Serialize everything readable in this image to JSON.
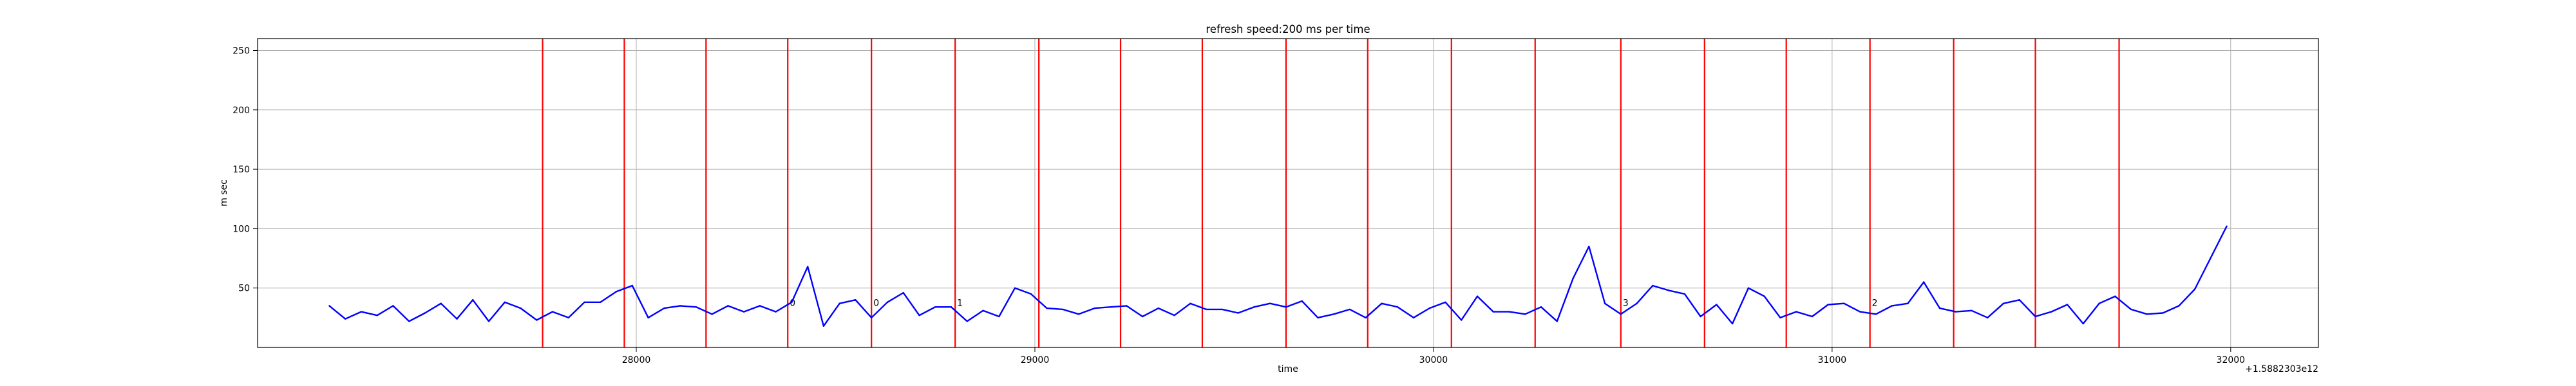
{
  "chart_data": {
    "type": "line",
    "title": "refresh speed:200 ms per time",
    "xlabel": "time",
    "ylabel": "m sec",
    "x_offset_label": "+1.5882303e12",
    "xlim": [
      27050,
      32220
    ],
    "ylim": [
      0,
      260
    ],
    "x_ticks": [
      28000,
      29000,
      30000,
      31000,
      32000
    ],
    "y_ticks": [
      50,
      100,
      150,
      200,
      250
    ],
    "grid": true,
    "line_color": "#0000ff",
    "marker_color": "#ff0000",
    "series": [
      {
        "x": [
          27230,
          27270,
          27310,
          27350,
          27390,
          27430,
          27470,
          27510,
          27550,
          27590,
          27630,
          27670,
          27710,
          27750,
          27790,
          27830,
          27870,
          27910,
          27950,
          27990,
          28030,
          28070,
          28110,
          28150,
          28190,
          28230,
          28270,
          28310,
          28350,
          28390,
          28430,
          28470,
          28510,
          28550,
          28590,
          28630,
          28670,
          28710,
          28750,
          28790,
          28830,
          28870,
          28910,
          28950,
          28990,
          29030,
          29070,
          29110,
          29150,
          29190,
          29230,
          29270,
          29310,
          29350,
          29390,
          29430,
          29470,
          29510,
          29550,
          29590,
          29630,
          29670,
          29710,
          29750,
          29790,
          29830,
          29870,
          29910,
          29950,
          29990,
          30030,
          30070,
          30110,
          30150,
          30190,
          30230,
          30270,
          30310,
          30350,
          30390,
          30430,
          30470,
          30510,
          30550,
          30590,
          30630,
          30670,
          30710,
          30750,
          30790,
          30830,
          30870,
          30910,
          30950,
          30990,
          31030,
          31070,
          31110,
          31150,
          31190,
          31230,
          31270,
          31310,
          31350,
          31390,
          31430,
          31470,
          31510,
          31550,
          31590,
          31630,
          31670,
          31710,
          31750,
          31790,
          31830,
          31870,
          31910,
          31990
        ],
        "y": [
          35,
          24,
          30,
          27,
          35,
          22,
          29,
          37,
          24,
          40,
          22,
          38,
          33,
          23,
          30,
          25,
          38,
          38,
          47,
          52,
          25,
          33,
          35,
          34,
          28,
          35,
          30,
          35,
          30,
          38,
          68,
          18,
          37,
          40,
          25,
          38,
          46,
          27,
          34,
          34,
          22,
          31,
          26,
          50,
          45,
          33,
          32,
          28,
          33,
          34,
          35,
          26,
          33,
          27,
          37,
          32,
          32,
          29,
          34,
          37,
          34,
          39,
          25,
          28,
          32,
          25,
          37,
          34,
          25,
          33,
          38,
          23,
          43,
          30,
          30,
          28,
          34,
          22,
          58,
          85,
          37,
          28,
          37,
          52,
          48,
          45,
          26,
          36,
          20,
          50,
          43,
          25,
          30,
          26,
          36,
          37,
          30,
          28,
          35,
          37,
          55,
          33,
          30,
          31,
          25,
          37,
          40,
          26,
          30,
          36,
          20,
          37,
          43,
          32,
          28,
          29,
          35,
          49,
          102
        ]
      }
    ],
    "vertical_markers": [
      {
        "x": 27765,
        "label": ""
      },
      {
        "x": 27970,
        "label": ""
      },
      {
        "x": 28175,
        "label": ""
      },
      {
        "x": 28380,
        "label": "0"
      },
      {
        "x": 28590,
        "label": "0"
      },
      {
        "x": 28800,
        "label": "1"
      },
      {
        "x": 29010,
        "label": ""
      },
      {
        "x": 29215,
        "label": ""
      },
      {
        "x": 29420,
        "label": ""
      },
      {
        "x": 29630,
        "label": ""
      },
      {
        "x": 29835,
        "label": ""
      },
      {
        "x": 30045,
        "label": ""
      },
      {
        "x": 30255,
        "label": ""
      },
      {
        "x": 30470,
        "label": "3"
      },
      {
        "x": 30680,
        "label": ""
      },
      {
        "x": 30885,
        "label": ""
      },
      {
        "x": 31095,
        "label": "2"
      },
      {
        "x": 31305,
        "label": ""
      },
      {
        "x": 31510,
        "label": ""
      },
      {
        "x": 31720,
        "label": ""
      }
    ]
  }
}
